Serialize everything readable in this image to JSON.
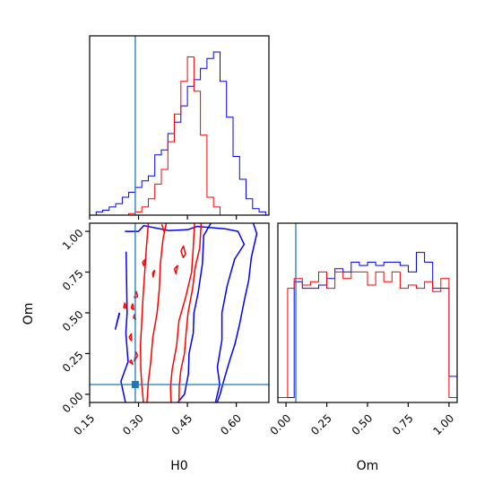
{
  "chart_data": {
    "type": "corner",
    "colors": {
      "blue": "#0000ff",
      "red": "#ff0000",
      "truth": "#1f77b4"
    },
    "truths": {
      "H0": 0.29,
      "Om": 0.06
    },
    "panels": [
      {
        "id": "hist-H0",
        "type": "histogram",
        "xlim": [
          0.15,
          0.7
        ],
        "xticks": [
          0.15,
          0.3,
          0.45,
          0.6
        ],
        "ylim": [
          0,
          1
        ],
        "bin_edges": [
          0.15,
          0.17,
          0.19,
          0.21,
          0.23,
          0.25,
          0.27,
          0.29,
          0.31,
          0.33,
          0.35,
          0.37,
          0.39,
          0.41,
          0.43,
          0.45,
          0.47,
          0.49,
          0.51,
          0.53,
          0.55,
          0.57,
          0.59,
          0.61,
          0.63,
          0.65,
          0.67,
          0.69
        ],
        "series": [
          {
            "name": "blue",
            "color": "#0000ff",
            "values": [
              0,
              0.02,
              0.03,
              0.05,
              0.07,
              0.11,
              0.14,
              0.17,
              0.21,
              0.24,
              0.37,
              0.4,
              0.5,
              0.57,
              0.67,
              0.79,
              0.83,
              0.9,
              0.96,
              1.0,
              0.82,
              0.6,
              0.36,
              0.22,
              0.1,
              0.04,
              0.02
            ]
          },
          {
            "name": "red",
            "color": "#ff0000",
            "values": [
              0,
              0,
              0,
              0,
              0,
              0,
              0.01,
              0.02,
              0.05,
              0.1,
              0.19,
              0.28,
              0.45,
              0.62,
              0.82,
              0.97,
              0.76,
              0.49,
              0.11,
              0.05,
              0,
              0,
              0,
              0,
              0,
              0,
              0
            ]
          }
        ]
      },
      {
        "id": "contour-H0-Om",
        "type": "contour",
        "xlim": [
          0.15,
          0.7
        ],
        "ylim": [
          -0.05,
          1.05
        ],
        "xticks": [
          0.15,
          0.3,
          0.45,
          0.6
        ],
        "yticks": [
          0.0,
          0.25,
          0.5,
          0.75,
          1.0
        ],
        "xlabel": "H0",
        "ylabel": "Om",
        "truth_point": [
          0.29,
          0.06
        ],
        "series": [
          {
            "name": "blue",
            "color": "#0000ff",
            "contours": [
              [
                [
                  0.258,
                  1.0
                ],
                [
                  0.3,
                  1.0
                ],
                [
                  0.316,
                  1.035
                ],
                [
                  0.392,
                  1.005
                ],
                [
                  0.45,
                  1.01
                ],
                [
                  0.48,
                  1.03
                ],
                [
                  0.564,
                  1.016
                ],
                [
                  0.605,
                  1.0
                ],
                [
                  0.624,
                  0.92
                ],
                [
                  0.595,
                  0.83
                ],
                [
                  0.572,
                  0.667
                ],
                [
                  0.556,
                  0.5
                ],
                [
                  0.556,
                  0.333
                ],
                [
                  0.542,
                  0.167
                ],
                [
                  0.549,
                  0.06
                ],
                [
                  0.536,
                  -0.05
                ]
              ],
              [
                [
                  0.242,
                  0.5
                ],
                [
                  0.229,
                  0.4
                ],
                [
                  0.241,
                  0.5
                ]
              ],
              [
                [
                  0.262,
                  0.875
                ],
                [
                  0.265,
                  0.5
                ],
                [
                  0.261,
                  0.375
                ],
                [
                  0.268,
                  0.2
                ],
                [
                  0.246,
                  0.08
                ],
                [
                  0.26,
                  -0.05
                ]
              ],
              [
                [
                  0.522,
                  1.05
                ],
                [
                  0.5,
                  0.975
                ],
                [
                  0.496,
                  0.8
                ],
                [
                  0.483,
                  0.625
                ],
                [
                  0.47,
                  0.5
                ],
                [
                  0.468,
                  0.375
                ],
                [
                  0.455,
                  0.25
                ],
                [
                  0.453,
                  0.125
                ],
                [
                  0.441,
                  0.0
                ],
                [
                  0.42,
                  -0.05
                ]
              ],
              [
                [
                  0.652,
                  1.05
                ],
                [
                  0.663,
                  0.986
                ],
                [
                  0.646,
                  0.84
                ],
                [
                  0.638,
                  0.7
                ],
                [
                  0.625,
                  0.58
                ],
                [
                  0.61,
                  0.43
                ],
                [
                  0.596,
                  0.31
                ],
                [
                  0.58,
                  0.21
                ],
                [
                  0.564,
                  0.1
                ],
                [
                  0.55,
                  0.0
                ],
                [
                  0.541,
                  -0.05
                ]
              ]
            ]
          },
          {
            "name": "red",
            "color": "#ff0000",
            "contours": [
              [
                [
                  0.33,
                  1.05
                ],
                [
                  0.324,
                  0.9
                ],
                [
                  0.319,
                  0.75
                ],
                [
                  0.314,
                  0.6
                ],
                [
                  0.31,
                  0.45
                ],
                [
                  0.306,
                  0.3
                ],
                [
                  0.307,
                  0.15
                ],
                [
                  0.31,
                  0.06
                ],
                [
                  0.315,
                  -0.05
                ]
              ],
              [
                [
                  0.492,
                  1.05
                ],
                [
                  0.488,
                  0.9
                ],
                [
                  0.474,
                  0.78
                ],
                [
                  0.466,
                  0.65
                ],
                [
                  0.452,
                  0.5
                ],
                [
                  0.446,
                  0.375
                ],
                [
                  0.441,
                  0.25
                ],
                [
                  0.43,
                  0.15
                ],
                [
                  0.425,
                  0.05
                ],
                [
                  0.424,
                  -0.05
                ]
              ],
              [
                [
                  0.385,
                  1.05
                ],
                [
                  0.375,
                  0.95
                ],
                [
                  0.367,
                  0.8
                ],
                [
                  0.364,
                  0.65
                ],
                [
                  0.357,
                  0.5
                ],
                [
                  0.344,
                  0.35
                ],
                [
                  0.337,
                  0.19
                ],
                [
                  0.33,
                  0.08
                ],
                [
                  0.326,
                  -0.05
                ]
              ],
              [
                [
                  0.472,
                  1.05
                ],
                [
                  0.468,
                  0.9
                ],
                [
                  0.463,
                  0.75
                ],
                [
                  0.445,
                  0.6
                ],
                [
                  0.424,
                  0.45
                ],
                [
                  0.417,
                  0.3
                ],
                [
                  0.403,
                  0.15
                ],
                [
                  0.398,
                  0.04
                ],
                [
                  0.4,
                  -0.05
                ]
              ],
              [
                [
                  0.38,
                  0.99
                ],
                [
                  0.372,
                  1.04
                ],
                [
                  0.378,
                  1.0
                ]
              ],
              [
                [
                  0.312,
                  0.81
                ],
                [
                  0.322,
                  0.83
                ],
                [
                  0.316,
                  0.79
                ],
                [
                  0.312,
                  0.81
                ]
              ],
              [
                [
                  0.343,
                  0.745
                ],
                [
                  0.349,
                  0.76
                ],
                [
                  0.345,
                  0.72
                ],
                [
                  0.343,
                  0.745
                ]
              ],
              [
                [
                  0.287,
                  0.59
                ],
                [
                  0.293,
                  0.63
                ],
                [
                  0.297,
                  0.6
                ],
                [
                  0.287,
                  0.59
                ]
              ],
              [
                [
                  0.254,
                  0.53
                ],
                [
                  0.258,
                  0.56
                ],
                [
                  0.262,
                  0.53
                ],
                [
                  0.254,
                  0.53
                ]
              ],
              [
                [
                  0.277,
                  0.53
                ],
                [
                  0.282,
                  0.555
                ],
                [
                  0.285,
                  0.52
                ],
                [
                  0.277,
                  0.53
                ]
              ],
              [
                [
                  0.284,
                  0.47
                ],
                [
                  0.288,
                  0.49
                ],
                [
                  0.291,
                  0.46
                ],
                [
                  0.284,
                  0.47
                ]
              ],
              [
                [
                  0.271,
                  0.35
                ],
                [
                  0.278,
                  0.37
                ],
                [
                  0.278,
                  0.33
                ],
                [
                  0.271,
                  0.35
                ]
              ],
              [
                [
                  0.287,
                  0.2
                ],
                [
                  0.292,
                  0.26
                ],
                [
                  0.297,
                  0.24
                ],
                [
                  0.287,
                  0.2
                ]
              ],
              [
                [
                  0.43,
                  0.88
                ],
                [
                  0.438,
                  0.91
                ],
                [
                  0.444,
                  0.86
                ],
                [
                  0.437,
                  0.84
                ],
                [
                  0.43,
                  0.88
                ]
              ],
              [
                [
                  0.41,
                  0.77
                ],
                [
                  0.42,
                  0.79
                ],
                [
                  0.415,
                  0.74
                ],
                [
                  0.41,
                  0.77
                ]
              ],
              [
                [
                  0.272,
                  0.2
                ],
                [
                  0.278,
                  0.21
                ],
                [
                  0.282,
                  0.185
                ],
                [
                  0.272,
                  0.2
                ]
              ]
            ]
          }
        ]
      },
      {
        "id": "hist-Om",
        "type": "histogram",
        "xlim": [
          -0.05,
          1.05
        ],
        "xticks": [
          0.0,
          0.25,
          0.5,
          0.75,
          1.0
        ],
        "xlabel": "Om",
        "ylim": [
          0,
          1
        ],
        "bin_edges": [
          -0.05,
          0.01,
          0.05,
          0.1,
          0.15,
          0.2,
          0.25,
          0.3,
          0.35,
          0.4,
          0.45,
          0.5,
          0.55,
          0.6,
          0.65,
          0.7,
          0.75,
          0.8,
          0.85,
          0.9,
          0.95,
          1.0,
          1.05
        ],
        "series": [
          {
            "name": "blue",
            "color": "#0000ff",
            "values": [
              0.03,
              0.03,
              0.74,
              0.7,
              0.7,
              0.72,
              0.76,
              0.82,
              0.8,
              0.86,
              0.84,
              0.86,
              0.84,
              0.86,
              0.86,
              0.84,
              0.8,
              0.92,
              0.86,
              0.7,
              0.7,
              0.16
            ]
          },
          {
            "name": "red",
            "color": "#ff0000",
            "values": [
              0.03,
              0.7,
              0.76,
              0.72,
              0.74,
              0.8,
              0.7,
              0.8,
              0.76,
              0.8,
              0.8,
              0.72,
              0.8,
              0.74,
              0.8,
              0.7,
              0.72,
              0.7,
              0.74,
              0.68,
              0.76,
              0.03
            ]
          }
        ]
      }
    ]
  }
}
